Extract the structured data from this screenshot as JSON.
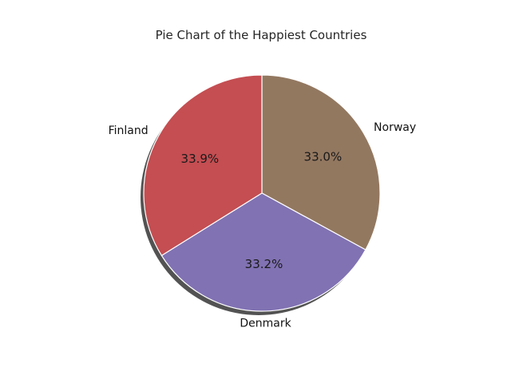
{
  "chart_data": {
    "type": "pie",
    "title": "Pie Chart of the Happiest Countries",
    "slices": [
      {
        "label": "Norway",
        "percent": 33.0,
        "color": "#937860"
      },
      {
        "label": "Denmark",
        "percent": 33.2,
        "color": "#8172b3"
      },
      {
        "label": "Finland",
        "percent": 33.9,
        "color": "#c44e52"
      }
    ],
    "start_angle_deg": 90,
    "direction": "clockwise",
    "shadow": true,
    "legend": "none"
  }
}
